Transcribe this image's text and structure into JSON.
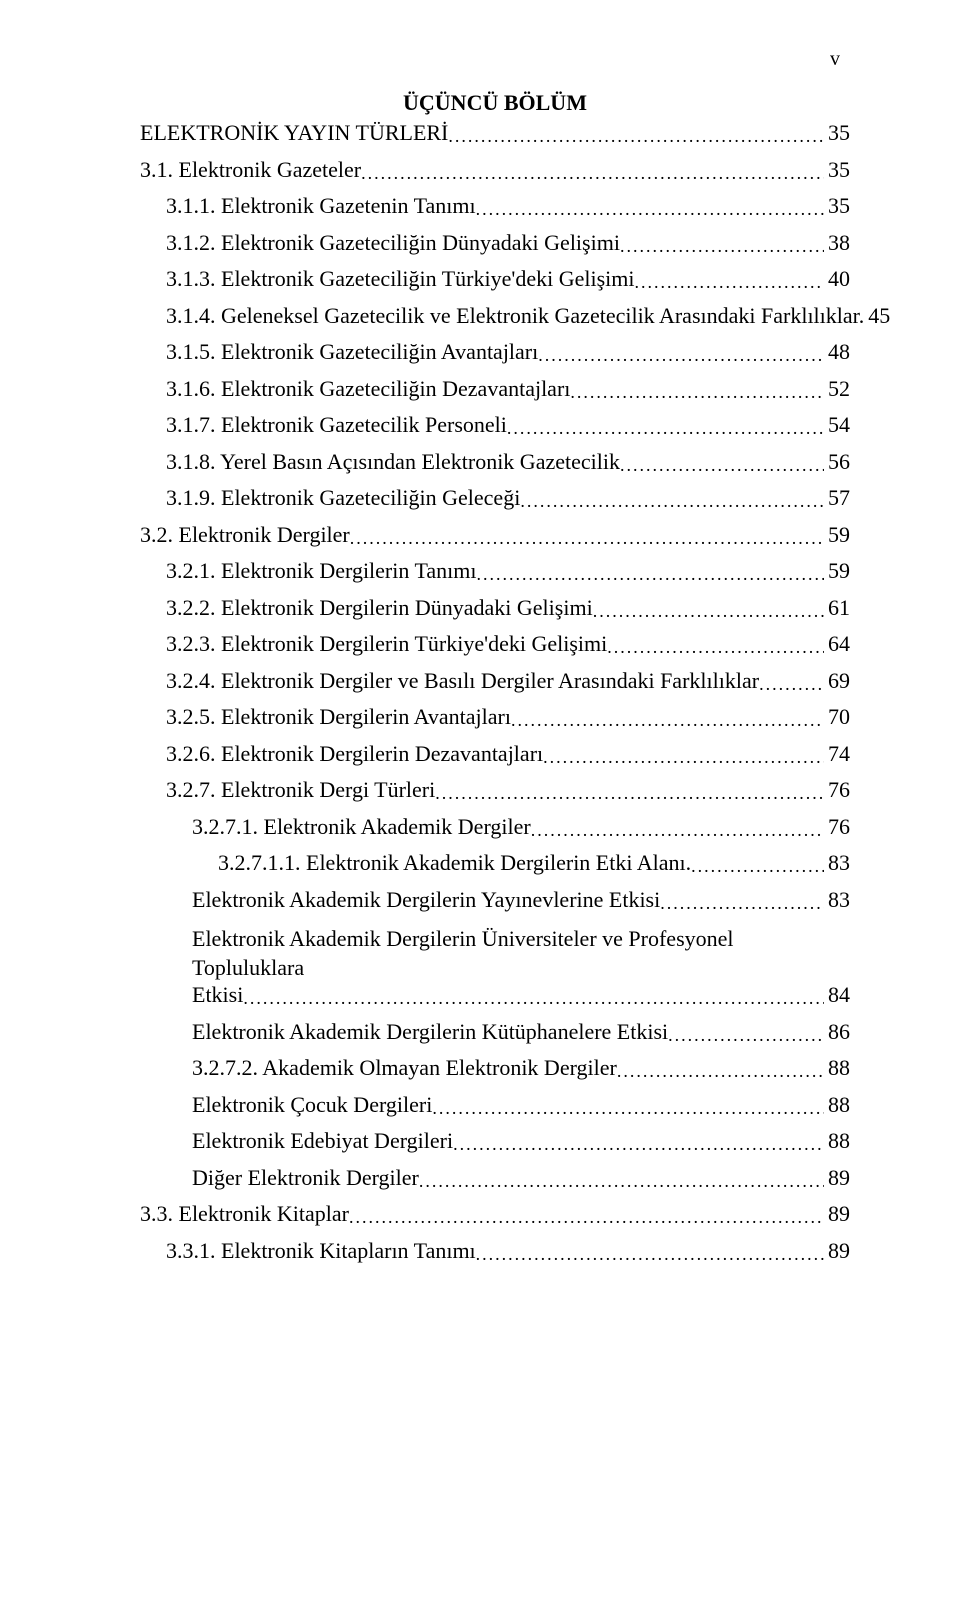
{
  "page_number_header": "v",
  "section_title": "ÜÇÜNCÜ BÖLÜM",
  "font_family": "Times New Roman",
  "text_color": "#000000",
  "background_color": "#ffffff",
  "entries": [
    {
      "indent": 0,
      "label": "ELEKTRONİK YAYIN TÜRLERİ",
      "page": "35"
    },
    {
      "indent": 0,
      "label": "3.1. Elektronik Gazeteler",
      "page": "35"
    },
    {
      "indent": 1,
      "label": "3.1.1. Elektronik Gazetenin Tanımı",
      "page": "35"
    },
    {
      "indent": 1,
      "label": "3.1.2. Elektronik Gazeteciliğin Dünyadaki Gelişimi",
      "page": "38"
    },
    {
      "indent": 1,
      "label": "3.1.3. Elektronik Gazeteciliğin Türkiye'deki Gelişimi",
      "page": "40"
    },
    {
      "indent": 1,
      "label": "3.1.4. Geleneksel Gazetecilik ve Elektronik Gazetecilik Arasındaki Farklılıklar.",
      "page": "45"
    },
    {
      "indent": 1,
      "label": "3.1.5. Elektronik Gazeteciliğin Avantajları",
      "page": "48"
    },
    {
      "indent": 1,
      "label": "3.1.6. Elektronik Gazeteciliğin Dezavantajları",
      "page": "52"
    },
    {
      "indent": 1,
      "label": "3.1.7. Elektronik Gazetecilik Personeli",
      "page": "54"
    },
    {
      "indent": 1,
      "label": "3.1.8. Yerel Basın Açısından Elektronik Gazetecilik",
      "page": "56"
    },
    {
      "indent": 1,
      "label": "3.1.9. Elektronik Gazeteciliğin Geleceği",
      "page": "57"
    },
    {
      "indent": 0,
      "label": "3.2. Elektronik Dergiler",
      "page": "59"
    },
    {
      "indent": 1,
      "label": "3.2.1. Elektronik Dergilerin Tanımı",
      "page": "59"
    },
    {
      "indent": 1,
      "label": "3.2.2. Elektronik Dergilerin Dünyadaki Gelişimi",
      "page": "61"
    },
    {
      "indent": 1,
      "label": "3.2.3. Elektronik Dergilerin Türkiye'deki Gelişimi",
      "page": "64"
    },
    {
      "indent": 1,
      "label": "3.2.4. Elektronik Dergiler ve Basılı Dergiler Arasındaki Farklılıklar",
      "page": "69"
    },
    {
      "indent": 1,
      "label": "3.2.5. Elektronik Dergilerin Avantajları",
      "page": "70"
    },
    {
      "indent": 1,
      "label": "3.2.6. Elektronik Dergilerin Dezavantajları",
      "page": "74"
    },
    {
      "indent": 1,
      "label": "3.2.7. Elektronik Dergi Türleri",
      "page": "76"
    },
    {
      "indent": 2,
      "label": "3.2.7.1. Elektronik Akademik Dergiler",
      "page": "76"
    },
    {
      "indent": 3,
      "label": "3.2.7.1.1. Elektronik Akademik Dergilerin Etki Alanı.",
      "page": "83"
    },
    {
      "indent": 2,
      "label": "Elektronik Akademik Dergilerin Yayınevlerine Etkisi",
      "page": "83"
    },
    {
      "indent": 2,
      "type": "wrap",
      "label": "Elektronik Akademik Dergilerin Üniversiteler ve Profesyonel Topluluklara"
    },
    {
      "indent": 2,
      "label": "Etkisi",
      "page": "84"
    },
    {
      "indent": 2,
      "label": "Elektronik Akademik Dergilerin Kütüphanelere Etkisi",
      "page": "86"
    },
    {
      "indent": 2,
      "label": "3.2.7.2. Akademik Olmayan Elektronik Dergiler",
      "page": "88"
    },
    {
      "indent": 2,
      "label": "Elektronik Çocuk Dergileri",
      "page": "88"
    },
    {
      "indent": 2,
      "label": "Elektronik Edebiyat Dergileri",
      "page": "88"
    },
    {
      "indent": 2,
      "label": "Diğer Elektronik Dergiler",
      "page": "89"
    },
    {
      "indent": 0,
      "label": "3.3. Elektronik Kitaplar",
      "page": "89"
    },
    {
      "indent": 1,
      "label": "3.3.1. Elektronik Kitapların Tanımı",
      "page": "89"
    }
  ]
}
